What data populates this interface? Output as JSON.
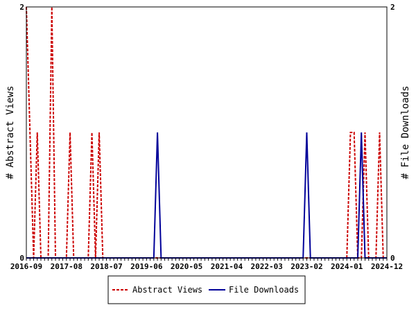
{
  "chart_data": {
    "type": "line",
    "title": "",
    "ylabel_left": "# Abstract Views",
    "ylabel_right": "# File Downloads",
    "ylim": [
      0,
      2
    ],
    "y_ticks_left": [
      "0",
      "2"
    ],
    "y_ticks_right": [
      "0",
      "2"
    ],
    "x_ticks": [
      "2016-09",
      "2017-08",
      "2018-07",
      "2019-06",
      "2020-05",
      "2021-04",
      "2022-03",
      "2023-02",
      "2024-01",
      "2024-12"
    ],
    "n_months": 100,
    "grid": false,
    "legend_position": "bottom",
    "series": [
      {
        "name": "Abstract Views",
        "color": "#cc0000",
        "style": "dashed",
        "values": [
          2,
          1,
          0,
          1,
          0,
          0,
          0,
          2,
          0,
          0,
          0,
          0,
          1,
          0,
          0,
          0,
          0,
          0,
          1,
          0,
          1,
          0,
          0,
          0,
          0,
          0,
          0,
          0,
          0,
          0,
          0,
          0,
          0,
          0,
          0,
          0,
          0,
          0,
          0,
          0,
          0,
          0,
          0,
          0,
          0,
          0,
          0,
          0,
          0,
          0,
          0,
          0,
          0,
          0,
          0,
          0,
          0,
          0,
          0,
          0,
          0,
          0,
          0,
          0,
          0,
          0,
          0,
          0,
          0,
          0,
          0,
          0,
          0,
          0,
          0,
          0,
          0,
          0,
          0,
          0,
          0,
          0,
          0,
          0,
          0,
          0,
          0,
          0,
          0,
          1,
          1,
          0,
          0,
          1,
          0,
          0,
          0,
          1,
          0,
          0
        ]
      },
      {
        "name": "File Downloads",
        "color": "#000099",
        "style": "solid",
        "values": [
          0,
          0,
          0,
          0,
          0,
          0,
          0,
          0,
          0,
          0,
          0,
          0,
          0,
          0,
          0,
          0,
          0,
          0,
          0,
          0,
          0,
          0,
          0,
          0,
          0,
          0,
          0,
          0,
          0,
          0,
          0,
          0,
          0,
          0,
          0,
          0,
          1,
          0,
          0,
          0,
          0,
          0,
          0,
          0,
          0,
          0,
          0,
          0,
          0,
          0,
          0,
          0,
          0,
          0,
          0,
          0,
          0,
          0,
          0,
          0,
          0,
          0,
          0,
          0,
          0,
          0,
          0,
          0,
          0,
          0,
          0,
          0,
          0,
          0,
          0,
          0,
          0,
          1,
          0,
          0,
          0,
          0,
          0,
          0,
          0,
          0,
          0,
          0,
          0,
          0,
          0,
          0,
          1,
          0,
          0,
          0,
          0,
          0,
          0,
          0
        ]
      }
    ]
  }
}
